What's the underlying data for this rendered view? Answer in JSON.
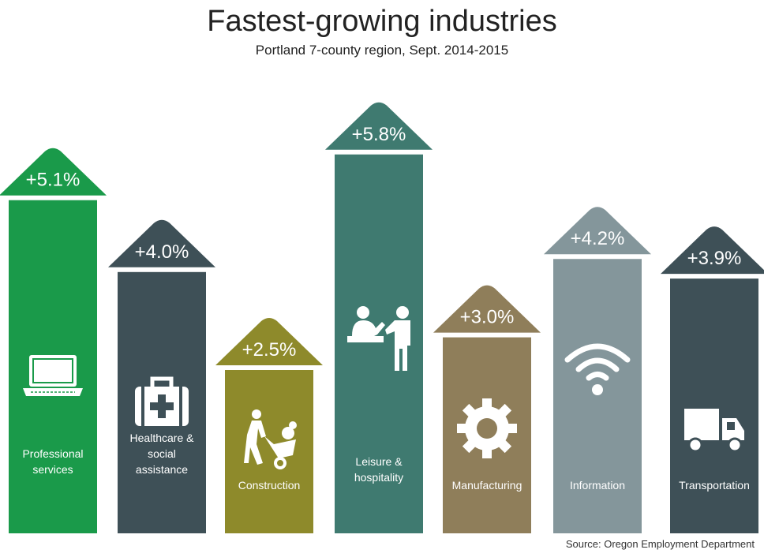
{
  "title": "Fastest-growing industries",
  "subtitle": "Portland 7-county region, Sept. 2014-2015",
  "source": "Source: Oregon Employment Department",
  "chart_data": {
    "type": "bar",
    "categories": [
      "Professional services",
      "Healthcare & social assistance",
      "Construction",
      "Leisure & hospitality",
      "Manufacturing",
      "Information",
      "Transportation"
    ],
    "category_lines": [
      [
        "Professional",
        "services"
      ],
      [
        "Healthcare &",
        "social",
        "assistance"
      ],
      [
        "Construction"
      ],
      [
        "Leisure &",
        "hospitality"
      ],
      [
        "Manufacturing"
      ],
      [
        "Information"
      ],
      [
        "Transportation"
      ]
    ],
    "values": [
      5.1,
      4.0,
      2.5,
      5.8,
      3.0,
      4.2,
      3.9
    ],
    "value_labels": [
      "+5.1%",
      "+4.0%",
      "+2.5%",
      "+5.8%",
      "+3.0%",
      "+4.2%",
      "+3.9%"
    ],
    "colors": [
      "#1a9a4a",
      "#3e5057",
      "#8e8a2b",
      "#3f7a70",
      "#8f7e5a",
      "#84969b",
      "#3e5057"
    ],
    "icons": [
      "laptop-icon",
      "first-aid-kit-icon",
      "wheelbarrow-worker-icon",
      "reception-desk-icon",
      "gear-icon",
      "wifi-icon",
      "truck-icon"
    ],
    "ylim": [
      0,
      6.2
    ],
    "grid": false,
    "legend": "none"
  }
}
